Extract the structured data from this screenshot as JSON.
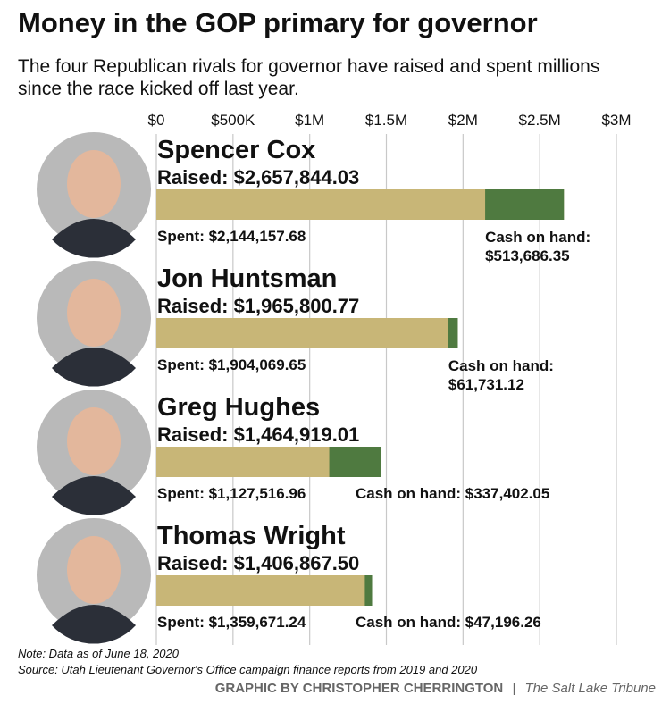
{
  "chart_data": {
    "type": "bar",
    "orientation": "horizontal",
    "stacked": true,
    "title": "Money in the GOP primary for governor",
    "subtitle": "The four Republican rivals for governor have raised and spent millions since the race kicked off last year.",
    "categories": [
      "Spencer Cox",
      "Jon Huntsman",
      "Greg Hughes",
      "Thomas Wright"
    ],
    "raised": {
      "values": [
        2657844.03,
        1965800.77,
        1464919.01,
        1406867.5
      ],
      "value_labels": [
        "Raised: $2,657,844.03",
        "Raised: $1,965,800.77",
        "Raised: $1,464,919.01",
        "Raised: $1,406,867.50"
      ]
    },
    "series": [
      {
        "color": "#c8b677",
        "values": [
          2144157.68,
          1904069.65,
          1127516.96,
          1359671.24
        ],
        "value_labels": [
          "Spent: $2,144,157.68",
          "Spent: $1,904,069.65",
          "Spent: $1,127,516.96",
          "Spent: $1,359,671.24"
        ]
      },
      {
        "color": "#4f7a40",
        "values": [
          513686.35,
          61731.12,
          337402.05,
          47196.26
        ],
        "value_labels": [
          "Cash on hand: $513,686.35",
          "Cash on hand: $61,731.12",
          "Cash on hand: $337,402.05",
          "Cash on hand: $47,196.26"
        ]
      }
    ],
    "xlim": [
      0,
      3000000
    ],
    "xticks": [
      {
        "value": 0,
        "label": "$0"
      },
      {
        "value": 500000,
        "label": "$500K"
      },
      {
        "value": 1000000,
        "label": "$1M"
      },
      {
        "value": 1500000,
        "label": "$1.5M"
      },
      {
        "value": 2000000,
        "label": "$2M"
      },
      {
        "value": 2500000,
        "label": "$2.5M"
      },
      {
        "value": 3000000,
        "label": "$3M"
      }
    ],
    "grid": true,
    "note": "Note: Data as of June 18, 2020",
    "source": "Source: Utah Lieutenant Governor's Office campaign finance reports from 2019 and 2020",
    "credit": "GRAPHIC BY CHRISTOPHER CHERRINGTON",
    "publication": "The Salt Lake Tribune"
  }
}
